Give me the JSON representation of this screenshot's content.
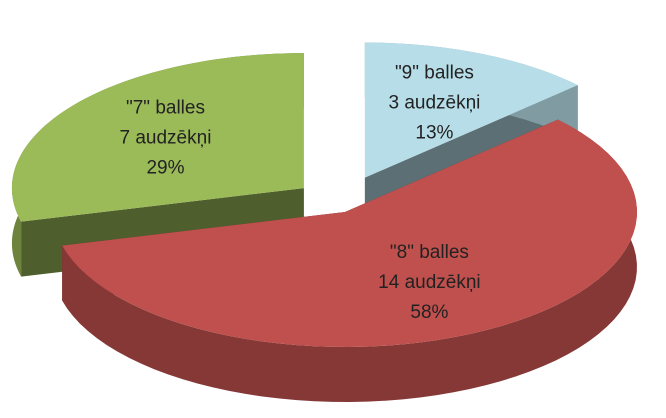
{
  "chart_data": {
    "type": "pie",
    "categories": [
      "\"9\" balles",
      "\"8\" balles",
      "\"7\" balles"
    ],
    "sublabels": [
      "3 audzēkņi",
      "14 audzēkņi",
      "7 audzēkņi"
    ],
    "values": [
      13,
      58,
      29
    ],
    "value_labels": [
      "13%",
      "58%",
      "29%"
    ],
    "colors": [
      "#b7dee8",
      "#c0504d",
      "#9bbb59"
    ]
  }
}
